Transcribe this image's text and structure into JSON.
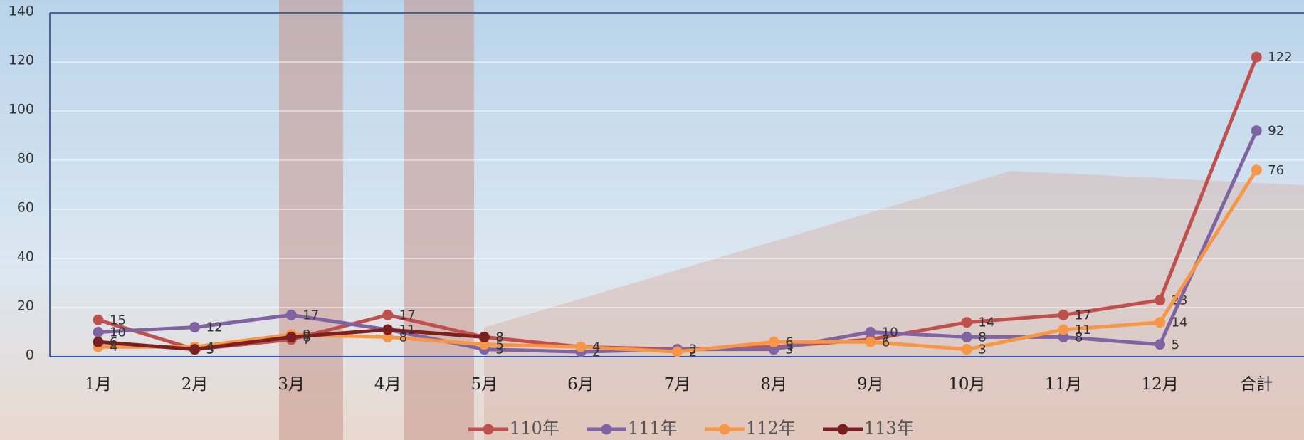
{
  "chart_data": {
    "type": "line",
    "categories": [
      "1月",
      "2月",
      "3月",
      "4月",
      "5月",
      "6月",
      "7月",
      "8月",
      "9月",
      "10月",
      "11月",
      "12月",
      "合計"
    ],
    "series": [
      {
        "name": "110年",
        "color": "#c0504d",
        "values": [
          15,
          3,
          7,
          17,
          8,
          4,
          3,
          4,
          7,
          14,
          17,
          23,
          122
        ]
      },
      {
        "name": "111年",
        "color": "#8064a2",
        "values": [
          10,
          12,
          17,
          11,
          3,
          2,
          3,
          3,
          10,
          8,
          8,
          5,
          92
        ]
      },
      {
        "name": "112年",
        "color": "#f79646",
        "values": [
          4,
          4,
          9,
          8,
          5,
          4,
          2,
          6,
          6,
          3,
          11,
          14,
          76
        ]
      },
      {
        "name": "113年",
        "color": "#7b2020",
        "values": [
          6,
          3,
          8,
          11,
          8,
          null,
          null,
          null,
          null,
          null,
          null,
          null,
          null
        ]
      }
    ],
    "ylim": [
      0,
      140
    ],
    "yticks": [
      0,
      20,
      40,
      60,
      80,
      100,
      120,
      140
    ],
    "grid": true,
    "legend": "bottom"
  }
}
